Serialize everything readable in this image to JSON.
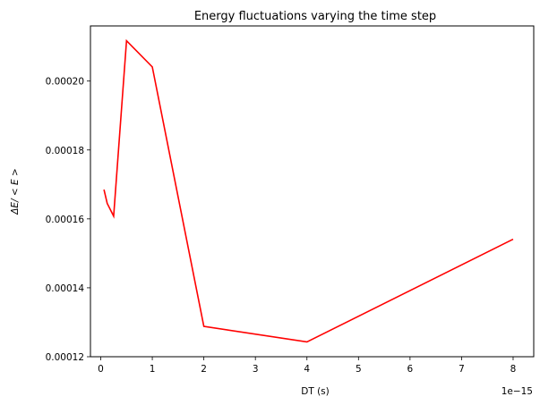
{
  "chart_data": {
    "type": "line",
    "title": "Energy fluctuations varying the time step",
    "xlabel": "DT (s)",
    "ylabel_prefix": "ΔE/ < E >",
    "x_offset_label": "1e−15",
    "x_tick_values": [
      0,
      1,
      2,
      3,
      4,
      5,
      6,
      7,
      8
    ],
    "x_tick_labels": [
      "0",
      "1",
      "2",
      "3",
      "4",
      "5",
      "6",
      "7",
      "8"
    ],
    "y_tick_values": [
      0.00012,
      0.00014,
      0.00016,
      0.00018,
      0.0002
    ],
    "y_tick_labels": [
      "0.00012",
      "0.00014",
      "0.00016",
      "0.00018",
      "0.00020"
    ],
    "xlim": [
      -0.2,
      8.4
    ],
    "ylim": [
      0.00012,
      0.000216
    ],
    "grid": false,
    "series": [
      {
        "color": "#ff0000",
        "x": [
          0.0625,
          0.125,
          0.25,
          0.5,
          1,
          2,
          4,
          8
        ],
        "y": [
          0.0001685,
          0.0001645,
          0.0001608,
          0.0002117,
          0.0002041,
          0.0001288,
          0.0001243,
          0.0001541
        ]
      }
    ]
  }
}
